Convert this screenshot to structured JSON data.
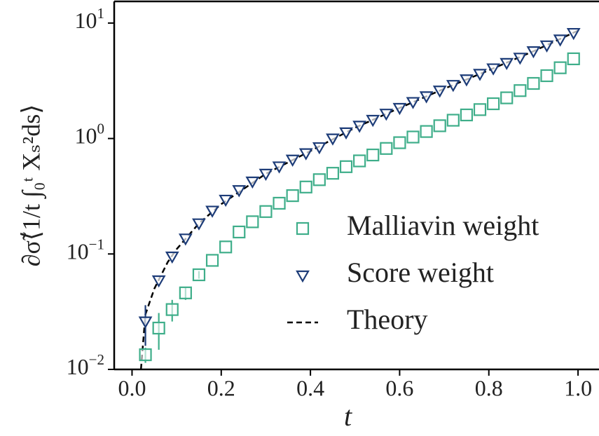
{
  "chart_data": {
    "type": "scatter",
    "xlabel": "t",
    "ylabel": "∂σ̃⟨1/t ∫₀ᵗ Xₛ²ds⟩",
    "xlim": [
      -0.04,
      1.047
    ],
    "ylim": [
      0.01,
      15.4
    ],
    "log_y": true,
    "xticks": [
      {
        "value": 0,
        "label": "0.0"
      },
      0.2,
      0.4,
      0.6,
      0.8,
      {
        "value": 1,
        "label": "1.0"
      }
    ],
    "yticks": [
      {
        "value": 0.01,
        "label": "10^−2"
      },
      {
        "value": 0.1,
        "label": "10^−1"
      },
      {
        "value": 1,
        "label": "10^0"
      },
      {
        "value": 10,
        "label": "10^1"
      }
    ],
    "legend": "lower right",
    "x": [
      0.03,
      0.06,
      0.09,
      0.12,
      0.15,
      0.18,
      0.21,
      0.24,
      0.27,
      0.3,
      0.33,
      0.36,
      0.39,
      0.42,
      0.45,
      0.48,
      0.51,
      0.54,
      0.57,
      0.6,
      0.63,
      0.66,
      0.69,
      0.72,
      0.75,
      0.78,
      0.81,
      0.84,
      0.87,
      0.9,
      0.93,
      0.96,
      0.99
    ],
    "series": [
      {
        "name": "Malliavin weight",
        "marker": "square",
        "color": "#3fae8a",
        "values": [
          0.0134,
          0.0228,
          0.033,
          0.046,
          0.066,
          0.088,
          0.115,
          0.155,
          0.19,
          0.233,
          0.275,
          0.32,
          0.38,
          0.44,
          0.5,
          0.57,
          0.64,
          0.72,
          0.82,
          0.92,
          1.03,
          1.15,
          1.29,
          1.44,
          1.6,
          1.78,
          2.0,
          2.25,
          2.6,
          3.0,
          3.5,
          4.1,
          4.9
        ],
        "errors": [
          0.002,
          0.008,
          0.007,
          0.006,
          0.005,
          0,
          0,
          0,
          0,
          0,
          0,
          0,
          0,
          0,
          0,
          0,
          0,
          0,
          0,
          0,
          0,
          0,
          0,
          0,
          0,
          0,
          0,
          0,
          0,
          0,
          0,
          0,
          0
        ]
      },
      {
        "name": "Score weight",
        "marker": "triangle-down",
        "color": "#1d3c78",
        "values": [
          0.026,
          0.059,
          0.095,
          0.136,
          0.184,
          0.237,
          0.295,
          0.357,
          0.424,
          0.495,
          0.573,
          0.656,
          0.745,
          0.84,
          1.0,
          1.13,
          1.29,
          1.45,
          1.64,
          1.84,
          2.07,
          2.32,
          2.6,
          2.91,
          3.25,
          3.63,
          4.05,
          4.51,
          5.01,
          5.7,
          6.4,
          7.2,
          8.2
        ],
        "errors": [
          0.01,
          0,
          0,
          0,
          0,
          0,
          0,
          0,
          0,
          0,
          0,
          0,
          0,
          0,
          0,
          0,
          0,
          0,
          0,
          0,
          0,
          0,
          0,
          0,
          0,
          0,
          0,
          0,
          0,
          0,
          0,
          0,
          0
        ]
      }
    ],
    "theory": {
      "name": "Theory",
      "color": "#000000",
      "x": [
        0.02,
        0.03,
        0.05,
        0.08,
        0.1,
        0.15,
        0.2,
        0.3,
        0.4,
        0.5,
        0.6,
        0.7,
        0.8,
        0.9,
        1.0
      ],
      "values": [
        0.01,
        0.03,
        0.05,
        0.085,
        0.11,
        0.184,
        0.27,
        0.495,
        0.78,
        1.24,
        1.84,
        2.7,
        3.9,
        5.7,
        8.6
      ]
    }
  }
}
